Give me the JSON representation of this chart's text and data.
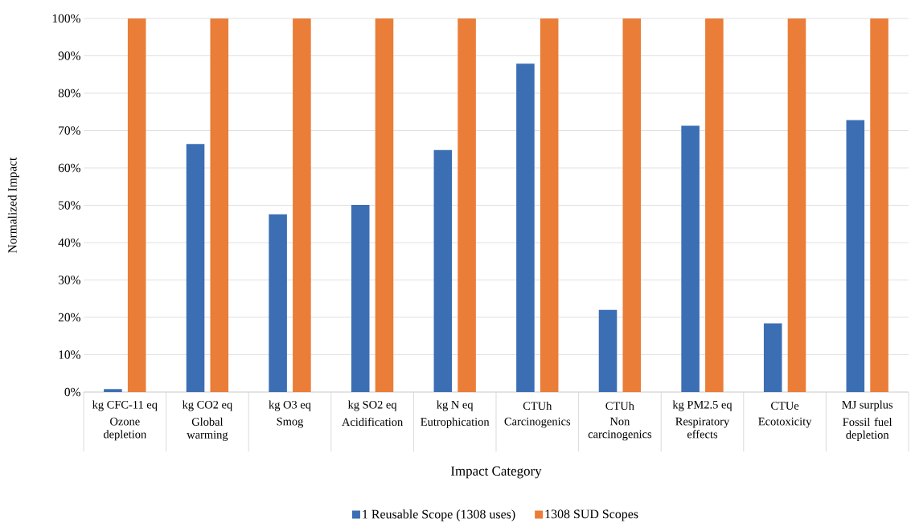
{
  "chart_data": {
    "type": "bar",
    "xlabel": "Impact Category",
    "ylabel": "Normalized Impact",
    "categories": [
      "Ozone depletion",
      "Global warming",
      "Smog",
      "Acidification",
      "Eutrophication",
      "Carcinogenics",
      "Non carcinogenics",
      "Respiratory effects",
      "Ecotoxicity",
      "Fossil fuel depletion"
    ],
    "annotations": [
      "kg CFC-11 eq",
      "kg CO2 eq",
      "kg O3 eq",
      "kg SO2 eq",
      "kg N eq",
      "CTUh",
      "CTUh",
      "kg PM2.5 eq",
      "CTUe",
      "MJ surplus"
    ],
    "series": [
      {
        "name": "1 Reusable Scope (1308 uses)",
        "color": "#3c6eb4",
        "values": [
          0.8,
          66.4,
          47.6,
          50.1,
          64.8,
          87.9,
          22.0,
          71.3,
          18.4,
          72.8
        ]
      },
      {
        "name": "1308 SUD Scopes",
        "color": "#ea7d38",
        "values": [
          100,
          100,
          100,
          100,
          100,
          100,
          100,
          100,
          100,
          100
        ]
      }
    ],
    "ylim": [
      0,
      100
    ],
    "yticks": [
      {
        "value": 0,
        "label": "0%"
      },
      {
        "value": 10,
        "label": "10%"
      },
      {
        "value": 20,
        "label": "20%"
      },
      {
        "value": 30,
        "label": "30%"
      },
      {
        "value": 40,
        "label": "40%"
      },
      {
        "value": 50,
        "label": "50%"
      },
      {
        "value": 60,
        "label": "60%"
      },
      {
        "value": 70,
        "label": "70%"
      },
      {
        "value": 80,
        "label": "80%"
      },
      {
        "value": 90,
        "label": "90%"
      },
      {
        "value": 100,
        "label": "100%"
      }
    ],
    "grid": "y",
    "legend": "bottom"
  }
}
